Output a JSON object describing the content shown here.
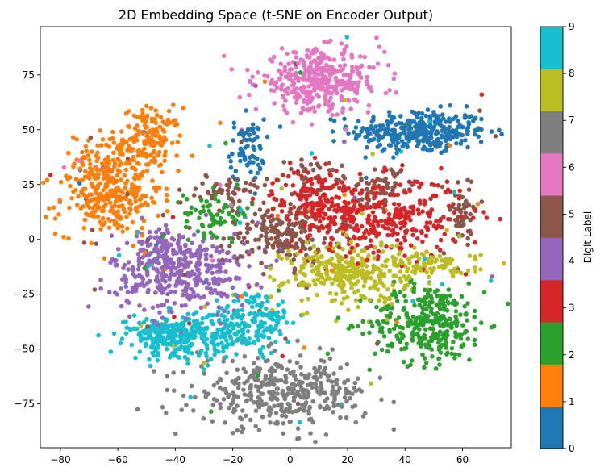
{
  "chart_data": {
    "type": "scatter",
    "title": "2D Embedding Space (t-SNE on Encoder Output)",
    "xlabel": "",
    "ylabel": "",
    "xlim": [
      -87,
      77
    ],
    "ylim": [
      -95,
      97
    ],
    "xticks": [
      -80,
      -60,
      -40,
      -20,
      0,
      20,
      40,
      60
    ],
    "yticks": [
      -75,
      -50,
      -25,
      0,
      25,
      50,
      75
    ],
    "grid": false,
    "colorbar": {
      "label": "Digit Label",
      "range": [
        0,
        9
      ],
      "ticks": [
        0,
        1,
        2,
        3,
        4,
        5,
        6,
        7,
        8,
        9
      ],
      "colors": [
        "#1f77b4",
        "#ff7f0e",
        "#2ca02c",
        "#d62728",
        "#9467bd",
        "#8c564b",
        "#e377c2",
        "#7f7f7f",
        "#bcbd22",
        "#17becf"
      ]
    },
    "clusters": [
      {
        "label": 0,
        "center": [
          45,
          49
        ],
        "spread": [
          12,
          5
        ],
        "count": 330
      },
      {
        "label": 0,
        "center": [
          -15,
          41
        ],
        "spread": [
          3,
          7
        ],
        "count": 70
      },
      {
        "label": 1,
        "center": [
          -48,
          46
        ],
        "spread": [
          5,
          7
        ],
        "count": 140
      },
      {
        "label": 1,
        "center": [
          -63,
          35
        ],
        "spread": [
          6,
          7
        ],
        "count": 130
      },
      {
        "label": 1,
        "center": [
          -63,
          18
        ],
        "spread": [
          9,
          8
        ],
        "count": 230
      },
      {
        "label": 2,
        "center": [
          48,
          -38
        ],
        "spread": [
          10,
          9
        ],
        "count": 330
      },
      {
        "label": 2,
        "center": [
          -25,
          12
        ],
        "spread": [
          6,
          5
        ],
        "count": 80
      },
      {
        "label": 3,
        "center": [
          30,
          10
        ],
        "spread": [
          15,
          9
        ],
        "count": 380
      },
      {
        "label": 3,
        "center": [
          8,
          20
        ],
        "spread": [
          7,
          6
        ],
        "count": 120
      },
      {
        "label": 4,
        "center": [
          -38,
          -15
        ],
        "spread": [
          12,
          9
        ],
        "count": 380
      },
      {
        "label": 4,
        "center": [
          -45,
          -3
        ],
        "spread": [
          4,
          4
        ],
        "count": 50
      },
      {
        "label": 5,
        "center": [
          -3,
          2
        ],
        "spread": [
          10,
          7
        ],
        "count": 180
      },
      {
        "label": 5,
        "center": [
          -20,
          22
        ],
        "spread": [
          6,
          3
        ],
        "count": 50
      },
      {
        "label": 5,
        "center": [
          32,
          24
        ],
        "spread": [
          6,
          4
        ],
        "count": 50
      },
      {
        "label": 5,
        "center": [
          60,
          12
        ],
        "spread": [
          3,
          7
        ],
        "count": 50
      },
      {
        "label": 5,
        "center": [
          8,
          30
        ],
        "spread": [
          5,
          3
        ],
        "count": 30
      },
      {
        "label": 6,
        "center": [
          10,
          72
        ],
        "spread": [
          11,
          7
        ],
        "count": 380
      },
      {
        "label": 7,
        "center": [
          -3,
          -70
        ],
        "spread": [
          15,
          8
        ],
        "count": 380
      },
      {
        "label": 8,
        "center": [
          20,
          -15
        ],
        "spread": [
          11,
          7
        ],
        "count": 320
      },
      {
        "label": 8,
        "center": [
          50,
          -12
        ],
        "spread": [
          8,
          3
        ],
        "count": 90
      },
      {
        "label": 9,
        "center": [
          -36,
          -45
        ],
        "spread": [
          10,
          5
        ],
        "count": 250
      },
      {
        "label": 9,
        "center": [
          -13,
          -38
        ],
        "spread": [
          7,
          7
        ],
        "count": 160
      },
      {
        "label": 9,
        "center": [
          -48,
          -42
        ],
        "spread": [
          5,
          3
        ],
        "count": 60
      }
    ],
    "noise_points": 160
  }
}
